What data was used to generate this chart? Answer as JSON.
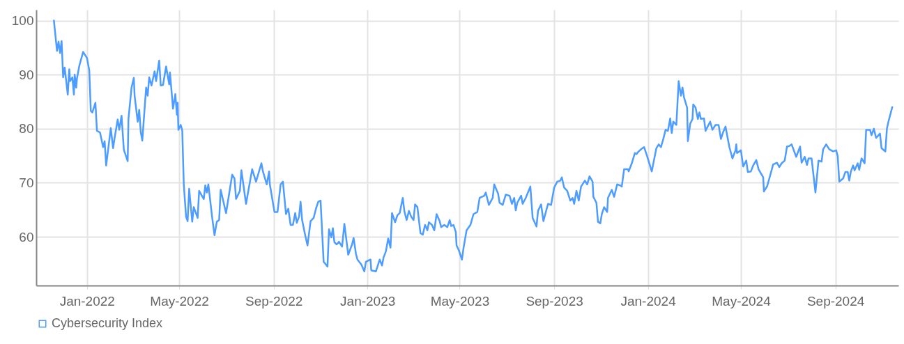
{
  "chart_data": {
    "type": "line",
    "xlim": [
      "2021-10-27",
      "2024-11-22"
    ],
    "ylim": [
      51,
      102
    ],
    "yticks": [
      60,
      70,
      80,
      90,
      100
    ],
    "xticks": [
      {
        "value": "2022-01-01",
        "label": "Jan-2022"
      },
      {
        "value": "2022-05-01",
        "label": "May-2022"
      },
      {
        "value": "2022-09-01",
        "label": "Sep-2022"
      },
      {
        "value": "2023-01-01",
        "label": "Jan-2023"
      },
      {
        "value": "2023-05-01",
        "label": "May-2023"
      },
      {
        "value": "2023-09-01",
        "label": "Sep-2023"
      },
      {
        "value": "2024-01-01",
        "label": "Jan-2024"
      },
      {
        "value": "2024-05-01",
        "label": "May-2024"
      },
      {
        "value": "2024-09-01",
        "label": "Sep-2024"
      }
    ],
    "grid": true,
    "legend": "bottom",
    "marker": "none",
    "line_style": "solid",
    "x": [
      "2021-11-19",
      "2021-11-23",
      "2021-11-25",
      "2021-11-27",
      "2021-11-29",
      "2021-12-01",
      "2021-12-03",
      "2021-12-07",
      "2021-12-09",
      "2021-12-10",
      "2021-12-13",
      "2021-12-15",
      "2021-12-16",
      "2021-12-18",
      "2021-12-19",
      "2021-12-22",
      "2021-12-27",
      "2022-01-01",
      "2022-01-04",
      "2022-01-06",
      "2022-01-08",
      "2022-01-12",
      "2022-01-14",
      "2022-01-18",
      "2022-01-22",
      "2022-01-24",
      "2022-01-26",
      "2022-02-01",
      "2022-02-04",
      "2022-02-06",
      "2022-02-10",
      "2022-02-12",
      "2022-02-15",
      "2022-02-18",
      "2022-02-23",
      "2022-02-24",
      "2022-02-28",
      "2022-03-03",
      "2022-03-04",
      "2022-03-08",
      "2022-03-10",
      "2022-03-12",
      "2022-03-14",
      "2022-03-19",
      "2022-03-21",
      "2022-03-23",
      "2022-03-26",
      "2022-03-30",
      "2022-04-01",
      "2022-04-05",
      "2022-04-07",
      "2022-04-10",
      "2022-04-14",
      "2022-04-18",
      "2022-04-19",
      "2022-04-23",
      "2022-04-26",
      "2022-04-28",
      "2022-04-29",
      "2022-04-30",
      "2022-05-03",
      "2022-05-05",
      "2022-05-07",
      "2022-05-10",
      "2022-05-12",
      "2022-05-14",
      "2022-05-18",
      "2022-05-20",
      "2022-05-25",
      "2022-05-27",
      "2022-06-02",
      "2022-06-04",
      "2022-06-06",
      "2022-06-08",
      "2022-06-13",
      "2022-06-16",
      "2022-06-19",
      "2022-06-22",
      "2022-06-24",
      "2022-07-01",
      "2022-07-09",
      "2022-07-12",
      "2022-07-14",
      "2022-07-19",
      "2022-07-21",
      "2022-07-27",
      "2022-08-04",
      "2022-08-09",
      "2022-08-16",
      "2022-08-18",
      "2022-08-23",
      "2022-08-26",
      "2022-08-27",
      "2022-09-02",
      "2022-09-06",
      "2022-09-10",
      "2022-09-13",
      "2022-09-15",
      "2022-09-17",
      "2022-09-20",
      "2022-09-23",
      "2022-09-26",
      "2022-09-29",
      "2022-10-01",
      "2022-10-04",
      "2022-10-06",
      "2022-10-08",
      "2022-10-12",
      "2022-10-15",
      "2022-10-19",
      "2022-10-23",
      "2022-10-26",
      "2022-10-29",
      "2022-11-01",
      "2022-11-05",
      "2022-11-10",
      "2022-11-12",
      "2022-11-15",
      "2022-11-17",
      "2022-11-19",
      "2022-11-22",
      "2022-11-25",
      "2022-11-29",
      "2022-12-02",
      "2022-12-07",
      "2022-12-12",
      "2022-12-14",
      "2022-12-17",
      "2022-12-19",
      "2022-12-24",
      "2022-12-28",
      "2022-12-30",
      "2023-01-05",
      "2023-01-06",
      "2023-01-12",
      "2023-01-17",
      "2023-01-20",
      "2023-01-22",
      "2023-01-25",
      "2023-01-28",
      "2023-01-31",
      "2023-02-02",
      "2023-02-06",
      "2023-02-09",
      "2023-02-12",
      "2023-02-16",
      "2023-02-18",
      "2023-02-21",
      "2023-02-24",
      "2023-02-27",
      "2023-03-02",
      "2023-03-04",
      "2023-03-07",
      "2023-03-11",
      "2023-03-14",
      "2023-03-17",
      "2023-03-20",
      "2023-03-22",
      "2023-03-26",
      "2023-03-29",
      "2023-04-01",
      "2023-04-05",
      "2023-04-07",
      "2023-04-11",
      "2023-04-15",
      "2023-04-18",
      "2023-04-20",
      "2023-04-23",
      "2023-04-26",
      "2023-04-27",
      "2023-04-30",
      "2023-05-04",
      "2023-05-06",
      "2023-05-10",
      "2023-05-15",
      "2023-05-19",
      "2023-05-24",
      "2023-05-27",
      "2023-06-02",
      "2023-06-04",
      "2023-06-08",
      "2023-06-13",
      "2023-06-15",
      "2023-06-20",
      "2023-06-22",
      "2023-06-26",
      "2023-06-30",
      "2023-07-05",
      "2023-07-08",
      "2023-07-11",
      "2023-07-13",
      "2023-07-15",
      "2023-07-20",
      "2023-07-22",
      "2023-07-26",
      "2023-08-01",
      "2023-08-04",
      "2023-08-09",
      "2023-08-11",
      "2023-08-15",
      "2023-08-18",
      "2023-08-24",
      "2023-08-28",
      "2023-09-01",
      "2023-09-05",
      "2023-09-09",
      "2023-09-11",
      "2023-09-14",
      "2023-09-18",
      "2023-09-22",
      "2023-09-25",
      "2023-09-27",
      "2023-09-30",
      "2023-10-03",
      "2023-10-06",
      "2023-10-11",
      "2023-10-14",
      "2023-10-17",
      "2023-10-21",
      "2023-10-22",
      "2023-10-26",
      "2023-10-28",
      "2023-10-31",
      "2023-11-02",
      "2023-11-05",
      "2023-11-09",
      "2023-11-10",
      "2023-11-15",
      "2023-11-18",
      "2023-11-22",
      "2023-11-26",
      "2023-11-28",
      "2023-12-01",
      "2023-12-06",
      "2023-12-07",
      "2023-12-11",
      "2023-12-15",
      "2023-12-17",
      "2023-12-20",
      "2023-12-24",
      "2023-12-27",
      "2023-12-31",
      "2024-01-06",
      "2024-01-12",
      "2024-01-15",
      "2024-01-18",
      "2024-01-21",
      "2024-01-24",
      "2024-01-27",
      "2024-01-30",
      "2024-02-01",
      "2024-02-03",
      "2024-02-07",
      "2024-02-10",
      "2024-02-13",
      "2024-02-15",
      "2024-02-17",
      "2024-02-21",
      "2024-02-22",
      "2024-02-25",
      "2024-02-28",
      "2024-02-29",
      "2024-03-03",
      "2024-03-06",
      "2024-03-08",
      "2024-03-10",
      "2024-03-14",
      "2024-03-16",
      "2024-03-22",
      "2024-03-25",
      "2024-03-29",
      "2024-04-02",
      "2024-04-05",
      "2024-04-08",
      "2024-04-11",
      "2024-04-16",
      "2024-04-20",
      "2024-04-24",
      "2024-04-25",
      "2024-04-26",
      "2024-05-01",
      "2024-05-04",
      "2024-05-08",
      "2024-05-10",
      "2024-05-14",
      "2024-05-17",
      "2024-05-21",
      "2024-05-24",
      "2024-05-30",
      "2024-05-31",
      "2024-06-04",
      "2024-06-07",
      "2024-06-12",
      "2024-06-17",
      "2024-06-20",
      "2024-06-23",
      "2024-06-27",
      "2024-06-30",
      "2024-07-03",
      "2024-07-06",
      "2024-07-12",
      "2024-07-17",
      "2024-07-19",
      "2024-07-23",
      "2024-07-26",
      "2024-07-28",
      "2024-08-01",
      "2024-08-06",
      "2024-08-10",
      "2024-08-14",
      "2024-08-16",
      "2024-08-20",
      "2024-08-24",
      "2024-08-29",
      "2024-09-02",
      "2024-09-04",
      "2024-09-06",
      "2024-09-11",
      "2024-09-14",
      "2024-09-17",
      "2024-09-19",
      "2024-09-21",
      "2024-09-24",
      "2024-09-26",
      "2024-09-30",
      "2024-10-02",
      "2024-10-05",
      "2024-10-09",
      "2024-10-11",
      "2024-10-16",
      "2024-10-18",
      "2024-10-21",
      "2024-10-24",
      "2024-10-29",
      "2024-10-31",
      "2024-11-05",
      "2024-11-07",
      "2024-11-09",
      "2024-11-14"
    ],
    "series": [
      {
        "name": "Cybersecurity Index",
        "color": "#4d9cff",
        "values": [
          100,
          94.4,
          96.1,
          94.0,
          96.2,
          89.5,
          91.3,
          86.3,
          91.0,
          88.8,
          89.5,
          86.3,
          90.0,
          87.6,
          89.3,
          91.6,
          94.2,
          93.1,
          90.8,
          83.3,
          83.0,
          84.8,
          79.6,
          79.3,
          76.6,
          77.7,
          73.2,
          80.1,
          76.4,
          78.3,
          81.7,
          79.8,
          82.4,
          76.1,
          74.0,
          81.8,
          87.6,
          89.4,
          86.1,
          81.3,
          83.5,
          79.4,
          77.8,
          87.6,
          86.1,
          89.5,
          88.0,
          90.6,
          88.8,
          92.6,
          88.0,
          88.1,
          91.5,
          88.2,
          90.4,
          83.7,
          86.4,
          82.6,
          84.8,
          79.8,
          80.7,
          79.7,
          69.7,
          63.7,
          62.9,
          68.9,
          62.8,
          65.5,
          63.5,
          68.5,
          67.0,
          69.5,
          68.2,
          69.7,
          63.5,
          60.3,
          62.8,
          63.1,
          68.7,
          64.4,
          71.5,
          70.8,
          67.0,
          68.5,
          72.3,
          66.1,
          72.5,
          70.2,
          73.6,
          72.1,
          69.7,
          72.1,
          69.7,
          64.6,
          64.6,
          69.7,
          70.2,
          67.2,
          64.2,
          65.2,
          62.2,
          62.2,
          64.4,
          62.6,
          63.7,
          66.5,
          63.1,
          60.3,
          58.4,
          62.9,
          63.5,
          65.2,
          66.5,
          66.7,
          55.4,
          54.5,
          61.4,
          59.9,
          61.6,
          59.0,
          58.6,
          59.1,
          58.2,
          62.4,
          56.7,
          58.6,
          59.8,
          56.9,
          55.8,
          54.9,
          53.6,
          55.4,
          55.8,
          53.8,
          53.6,
          55.8,
          54.7,
          56.2,
          57.3,
          59.7,
          58.0,
          64.4,
          62.7,
          64.0,
          64.4,
          67.2,
          64.8,
          63.1,
          64.8,
          63.7,
          63.1,
          66.0,
          65.5,
          60.7,
          60.4,
          62.2,
          61.2,
          62.7,
          62.2,
          61.2,
          64.2,
          62.9,
          61.8,
          62.2,
          61.8,
          63.1,
          62.0,
          62.2,
          60.9,
          58.4,
          57.5,
          55.8,
          57.9,
          61.2,
          62.2,
          64.2,
          64.6,
          67.2,
          67.6,
          68.2,
          65.9,
          67.2,
          69.7,
          68.0,
          66.3,
          65.9,
          67.8,
          67.6,
          66.1,
          67.2,
          64.9,
          66.3,
          67.6,
          66.1,
          67.2,
          69.3,
          63.5,
          61.9,
          64.8,
          66.0,
          62.9,
          66.1,
          65.9,
          69.1,
          70.2,
          70.4,
          71.0,
          69.1,
          68.5,
          66.7,
          67.2,
          66.1,
          68.5,
          66.7,
          69.3,
          70.4,
          69.7,
          71.2,
          70.2,
          67.4,
          66.3,
          62.8,
          62.5,
          64.2,
          65.5,
          64.6,
          67.2,
          68.7,
          67.4,
          69.7,
          69.5,
          69.3,
          72.5,
          72.5,
          72.1,
          73.6,
          75.5,
          75.3,
          75.8,
          76.3,
          76.6,
          74.9,
          72.1,
          76.4,
          77.1,
          76.6,
          78.1,
          79.8,
          79.6,
          81.9,
          79.2,
          81.3,
          80.7,
          88.8,
          86.1,
          87.6,
          85.8,
          83.9,
          77.7,
          80.9,
          81.8,
          84.5,
          83.9,
          81.8,
          83.0,
          81.8,
          81.9,
          79.6,
          81.3,
          79.8,
          80.7,
          80.7,
          78.1,
          79.4,
          80.4,
          76.6,
          74.5,
          76.0,
          77.1,
          75.5,
          76.0,
          73.0,
          74.1,
          72.0,
          72.1,
          73.2,
          74.2,
          72.5,
          71.0,
          68.4,
          69.3,
          70.8,
          73.4,
          73.7,
          72.9,
          73.6,
          74.1,
          76.7,
          76.8,
          77.1,
          74.8,
          76.7,
          73.7,
          74.8,
          73.3,
          74.5,
          74.5,
          68.2,
          74.1,
          73.9,
          76.2,
          77.1,
          76.2,
          75.8,
          76.0,
          74.9,
          70.2,
          70.8,
          72.0,
          72.0,
          70.4,
          72.0,
          73.2,
          72.3,
          73.6,
          72.4,
          74.5,
          73.6,
          79.8,
          79.8,
          78.8,
          80.0,
          78.3,
          79.1,
          76.4,
          75.8,
          80.0,
          81.3,
          84.0
        ]
      }
    ]
  }
}
